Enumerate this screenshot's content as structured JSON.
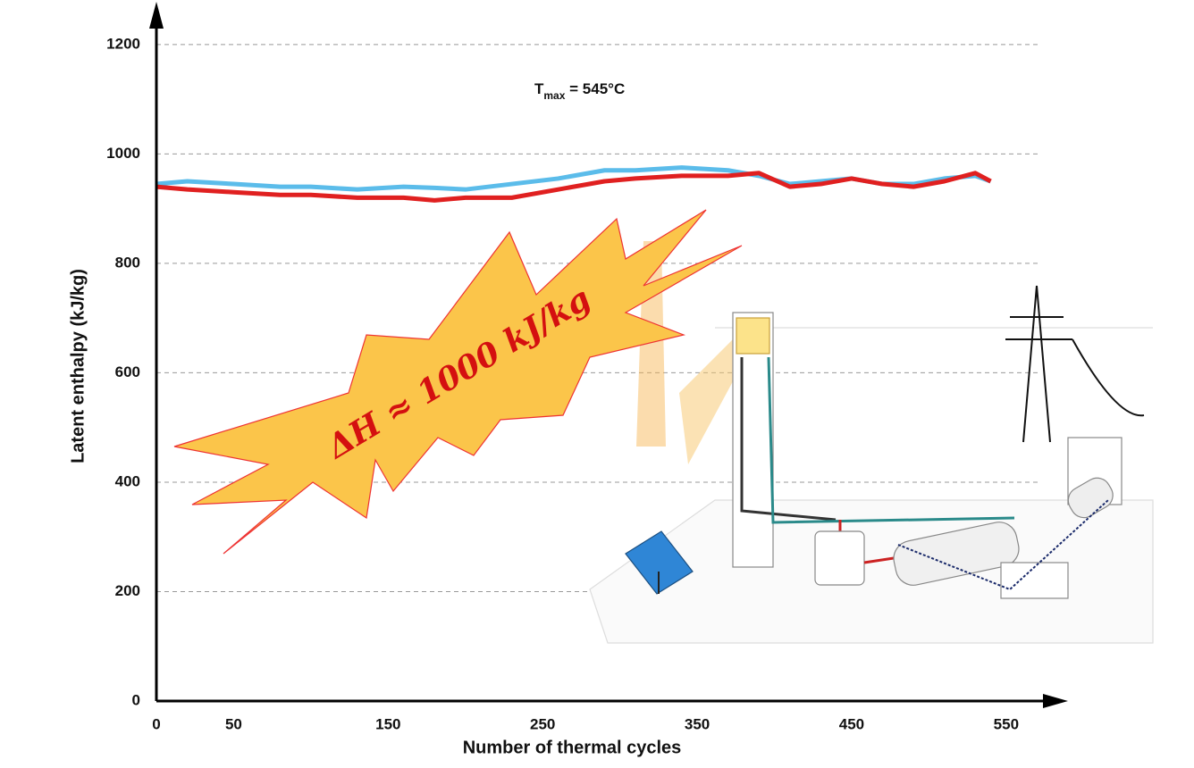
{
  "chart_data": {
    "type": "line",
    "x_label": "Number of thermal cycles",
    "y_label": "Latent enthalpy (kJ/kg)",
    "x": [
      0,
      20,
      50,
      80,
      100,
      130,
      160,
      180,
      200,
      230,
      260,
      290,
      310,
      340,
      370,
      390,
      410,
      430,
      450,
      470,
      490,
      510,
      530,
      540
    ],
    "series": [
      {
        "color": "#5bbcea",
        "values": [
          945,
          950,
          945,
          940,
          940,
          935,
          940,
          938,
          935,
          945,
          955,
          970,
          970,
          975,
          970,
          960,
          945,
          950,
          955,
          945,
          945,
          955,
          960,
          950
        ]
      },
      {
        "color": "#e02020",
        "values": [
          940,
          935,
          930,
          925,
          925,
          920,
          920,
          915,
          920,
          920,
          935,
          950,
          955,
          960,
          960,
          965,
          940,
          945,
          955,
          945,
          940,
          950,
          965,
          950
        ]
      }
    ],
    "xlim": [
      0,
      590
    ],
    "ylim": [
      0,
      1265
    ],
    "xticks": [
      0,
      50,
      150,
      250,
      350,
      450,
      550
    ],
    "yticks": [
      0,
      200,
      400,
      600,
      800,
      1000,
      1200
    ],
    "grid": true,
    "annotations": [
      {
        "main": "T",
        "sub": "max",
        "suffix": " = 545°C"
      },
      {
        "text": "ΔH  ≈ 1000 kJ/kg"
      }
    ]
  }
}
